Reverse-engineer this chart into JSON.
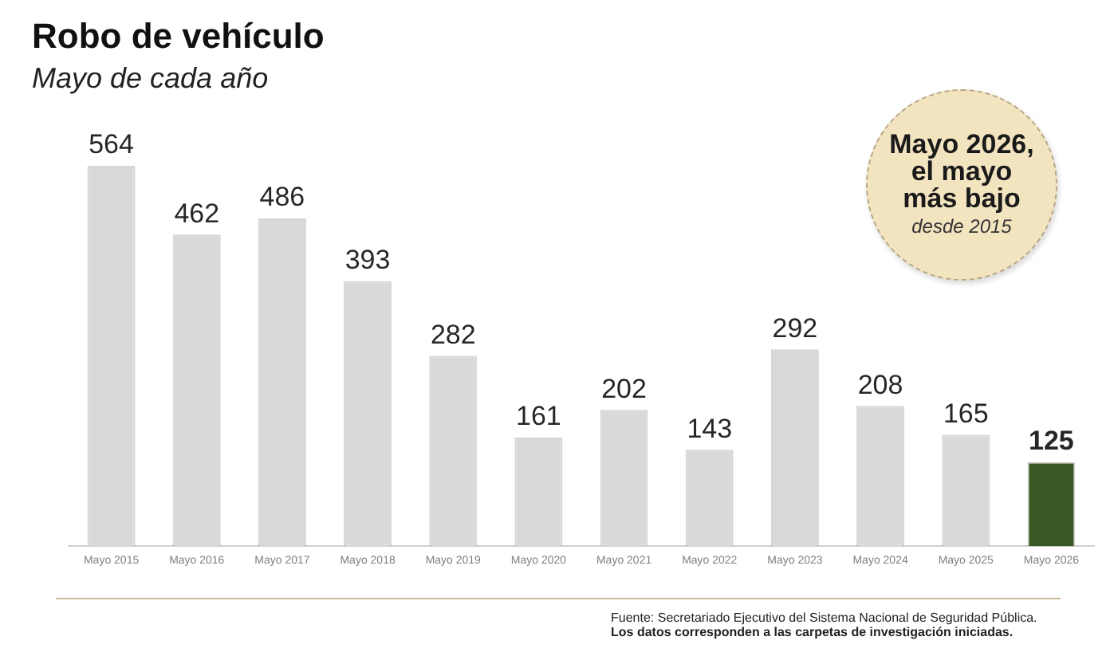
{
  "chart_data": {
    "type": "bar",
    "title": "Robo de vehículo",
    "subtitle": "Mayo de cada año",
    "categories": [
      "Mayo 2015",
      "Mayo 2016",
      "Mayo 2017",
      "Mayo 2018",
      "Mayo 2019",
      "Mayo 2020",
      "Mayo 2021",
      "Mayo 2022",
      "Mayo 2023",
      "Mayo 2024",
      "Mayo 2025",
      "Mayo 2026"
    ],
    "values": [
      564,
      462,
      486,
      393,
      282,
      161,
      202,
      143,
      292,
      208,
      165,
      125
    ],
    "colors": [
      "#d9d9d9",
      "#d9d9d9",
      "#d9d9d9",
      "#d9d9d9",
      "#d9d9d9",
      "#d9d9d9",
      "#d9d9d9",
      "#d9d9d9",
      "#d9d9d9",
      "#d9d9d9",
      "#d9d9d9",
      "#385723"
    ],
    "data_labels": true,
    "grid": false,
    "legend": false,
    "tick_labels": "x",
    "annotations": [
      "Mayo 2026, el mayo más bajo",
      "desde 2015",
      "Fuente: Secretariado Ejecutivo del Sistema Nacional de Seguridad Pública.",
      "Los datos corresponden a las carpetas de investigación iniciadas."
    ]
  }
}
